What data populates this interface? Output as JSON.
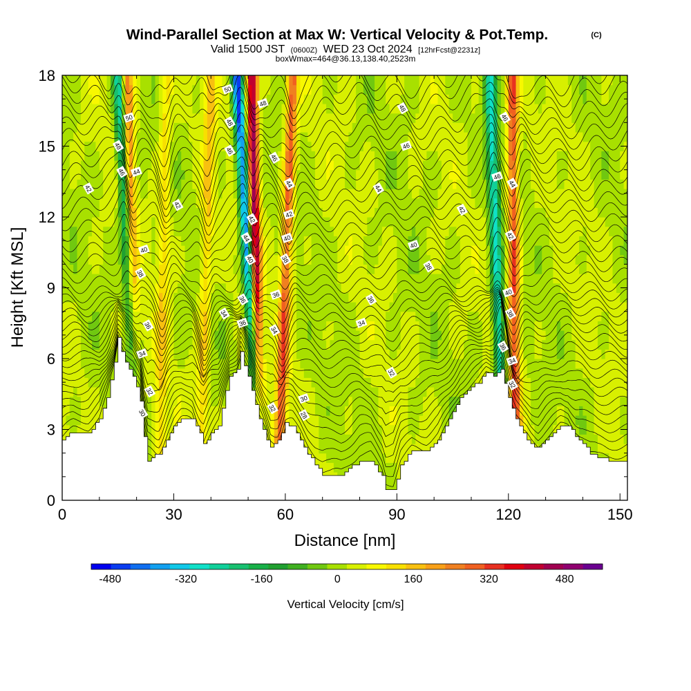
{
  "header": {
    "title": "Wind-Parallel Section at Max W: Vertical Velocity & Pot.Temp.",
    "copyright": "(C)",
    "subtitle_a": "Valid 1500 JST",
    "subtitle_b": "(0600Z)",
    "subtitle_c": "WED 23 Oct 2024",
    "subtitle_d": "[12hrFcst@2231z]",
    "subtitle_line3": "boxWmax=464@36.13,138.40,2523m"
  },
  "colorbar": {
    "title": "Vertical Velocity [cm/s]",
    "tick_labels": [
      "-480",
      "-320",
      "-160",
      "0",
      "160",
      "320",
      "480"
    ],
    "colors": [
      "#0000ee",
      "#0a3cf0",
      "#0f6ef0",
      "#12a0f0",
      "#10c8e8",
      "#10e0c8",
      "#10d09a",
      "#18c070",
      "#18b048",
      "#20a030",
      "#40b020",
      "#70c810",
      "#a8e000",
      "#d8f000",
      "#f8f800",
      "#f8e000",
      "#f8c010",
      "#f8a018",
      "#f08020",
      "#f06020",
      "#e83020",
      "#e00010",
      "#c00030",
      "#a00050",
      "#900070",
      "#6a0090"
    ]
  },
  "chart_data": {
    "type": "heatmap",
    "title": "Wind-Parallel Section at Max W: Vertical Velocity & Pot.Temp.",
    "xlabel": "Distance [nm]",
    "ylabel": "Height [Kft MSL]",
    "xlim": [
      0,
      152
    ],
    "ylim": [
      0,
      18
    ],
    "xticks": [
      0,
      30,
      60,
      90,
      120,
      150
    ],
    "yticks": [
      0,
      3,
      6,
      9,
      12,
      15,
      18
    ],
    "field": "Vertical Velocity [cm/s]",
    "field_range": [
      -520,
      560
    ],
    "overlay": "Potential Temperature contours",
    "terrain": [
      [
        0,
        2.6
      ],
      [
        3,
        2.9
      ],
      [
        7,
        2.9
      ],
      [
        10,
        3.4
      ],
      [
        12,
        4.4
      ],
      [
        14,
        5.8
      ],
      [
        15,
        6.9
      ],
      [
        17,
        5.8
      ],
      [
        19,
        5.3
      ],
      [
        21,
        4.2
      ],
      [
        22,
        2.7
      ],
      [
        23,
        1.7
      ],
      [
        26,
        2.0
      ],
      [
        28,
        2.6
      ],
      [
        30,
        3.2
      ],
      [
        32,
        3.5
      ],
      [
        33,
        3.5
      ],
      [
        35,
        3.5
      ],
      [
        37,
        2.8
      ],
      [
        38,
        2.4
      ],
      [
        40,
        2.8
      ],
      [
        42,
        3.2
      ],
      [
        44,
        4.6
      ],
      [
        45,
        5.3
      ],
      [
        47,
        5.6
      ],
      [
        48,
        6.3
      ],
      [
        50,
        5.2
      ],
      [
        52,
        4.0
      ],
      [
        54,
        3.0
      ],
      [
        56,
        2.2
      ],
      [
        58,
        2.5
      ],
      [
        60,
        3.3
      ],
      [
        62,
        3.1
      ],
      [
        64,
        2.6
      ],
      [
        66,
        2.0
      ],
      [
        68,
        1.5
      ],
      [
        70,
        1.1
      ],
      [
        72,
        1.0
      ],
      [
        75,
        1.0
      ],
      [
        77,
        1.3
      ],
      [
        80,
        1.7
      ],
      [
        83,
        1.7
      ],
      [
        86,
        1.0
      ],
      [
        87,
        0.4
      ],
      [
        89,
        0.4
      ],
      [
        91,
        1.5
      ],
      [
        94,
        2.1
      ],
      [
        98,
        2.1
      ],
      [
        101,
        2.5
      ],
      [
        104,
        3.4
      ],
      [
        107,
        4.4
      ],
      [
        110,
        4.8
      ],
      [
        112,
        5.0
      ],
      [
        114,
        5.4
      ],
      [
        116,
        5.3
      ],
      [
        118,
        5.6
      ],
      [
        120,
        4.3
      ],
      [
        122,
        3.5
      ],
      [
        124,
        2.8
      ],
      [
        126,
        2.4
      ],
      [
        128,
        2.2
      ],
      [
        130,
        2.6
      ],
      [
        132,
        2.9
      ],
      [
        134,
        3.2
      ],
      [
        136,
        3.2
      ],
      [
        138,
        2.7
      ],
      [
        140,
        2.4
      ],
      [
        142,
        2.0
      ],
      [
        144,
        1.8
      ],
      [
        147,
        1.7
      ],
      [
        150,
        1.7
      ],
      [
        152,
        1.7
      ]
    ],
    "updraft_cores": [
      {
        "x_base": 20,
        "x_top": 17.5,
        "w": 240
      },
      {
        "x_base": 53,
        "x_top": 51,
        "w": 464
      },
      {
        "x_base": 58,
        "x_top": 62,
        "w": 280
      },
      {
        "x_base": 122,
        "x_top": 121,
        "w": 300
      },
      {
        "x_base": 37,
        "x_top": 40,
        "w": 140
      },
      {
        "x_base": 26,
        "x_top": 28,
        "w": 120
      }
    ],
    "downdraft_cores": [
      {
        "x_base": 21,
        "x_top": 15,
        "w": -280
      },
      {
        "x_base": 54,
        "x_top": 47,
        "w": -460
      },
      {
        "x_base": 119,
        "x_top": 115,
        "w": -300
      }
    ],
    "theta_contour_labels": [
      {
        "text": "50",
        "x": 18,
        "y": 16.2
      },
      {
        "text": "48",
        "x": 15,
        "y": 15.0
      },
      {
        "text": "46",
        "x": 16,
        "y": 13.9
      },
      {
        "text": "44",
        "x": 20,
        "y": 13.9
      },
      {
        "text": "42",
        "x": 7,
        "y": 13.2
      },
      {
        "text": "42",
        "x": 31,
        "y": 12.5
      },
      {
        "text": "40",
        "x": 22,
        "y": 10.6
      },
      {
        "text": "38",
        "x": 21,
        "y": 9.6
      },
      {
        "text": "36",
        "x": 23,
        "y": 7.4
      },
      {
        "text": "34",
        "x": 21.5,
        "y": 6.2
      },
      {
        "text": "32",
        "x": 23.5,
        "y": 4.6
      },
      {
        "text": "30",
        "x": 21.5,
        "y": 3.7
      },
      {
        "text": "50",
        "x": 44.5,
        "y": 17.4
      },
      {
        "text": "48",
        "x": 45,
        "y": 16.0
      },
      {
        "text": "46",
        "x": 45,
        "y": 14.8
      },
      {
        "text": "48",
        "x": 54,
        "y": 16.8
      },
      {
        "text": "46",
        "x": 57,
        "y": 14.5
      },
      {
        "text": "44",
        "x": 61,
        "y": 13.4
      },
      {
        "text": "42",
        "x": 61,
        "y": 12.1
      },
      {
        "text": "42",
        "x": 51,
        "y": 11.9
      },
      {
        "text": "44",
        "x": 49.5,
        "y": 11.1
      },
      {
        "text": "40",
        "x": 60.5,
        "y": 11.1
      },
      {
        "text": "40",
        "x": 50.5,
        "y": 10.2
      },
      {
        "text": "38",
        "x": 60,
        "y": 10.2
      },
      {
        "text": "36",
        "x": 57.5,
        "y": 8.7
      },
      {
        "text": "36",
        "x": 48.5,
        "y": 8.5
      },
      {
        "text": "34",
        "x": 43.5,
        "y": 7.9
      },
      {
        "text": "36",
        "x": 48.5,
        "y": 7.5
      },
      {
        "text": "34",
        "x": 57,
        "y": 7.2
      },
      {
        "text": "32",
        "x": 56.5,
        "y": 3.9
      },
      {
        "text": "30",
        "x": 65,
        "y": 4.3
      },
      {
        "text": "28",
        "x": 65,
        "y": 3.6
      },
      {
        "text": "48",
        "x": 91.5,
        "y": 16.6
      },
      {
        "text": "46",
        "x": 92.5,
        "y": 15.0
      },
      {
        "text": "44",
        "x": 85,
        "y": 13.2
      },
      {
        "text": "42",
        "x": 107.5,
        "y": 12.3
      },
      {
        "text": "40",
        "x": 94.5,
        "y": 10.8
      },
      {
        "text": "38",
        "x": 98.5,
        "y": 9.9
      },
      {
        "text": "36",
        "x": 83,
        "y": 8.5
      },
      {
        "text": "34",
        "x": 80.5,
        "y": 7.5
      },
      {
        "text": "32",
        "x": 88.5,
        "y": 5.4
      },
      {
        "text": "46",
        "x": 119,
        "y": 16.2
      },
      {
        "text": "46",
        "x": 117,
        "y": 13.7
      },
      {
        "text": "44",
        "x": 121,
        "y": 13.4
      },
      {
        "text": "42",
        "x": 120.5,
        "y": 11.2
      },
      {
        "text": "40",
        "x": 120,
        "y": 8.8
      },
      {
        "text": "38",
        "x": 120.5,
        "y": 7.9
      },
      {
        "text": "36",
        "x": 118.5,
        "y": 6.5
      },
      {
        "text": "34",
        "x": 121,
        "y": 5.9
      },
      {
        "text": "32",
        "x": 121,
        "y": 4.9
      }
    ]
  }
}
